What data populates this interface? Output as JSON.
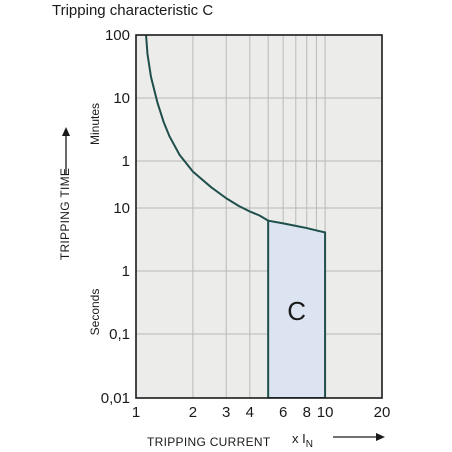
{
  "title": "Tripping characteristic C",
  "chart_data": {
    "type": "line",
    "title": "Tripping characteristic C",
    "xlabel": "TRIPPING CURRENT",
    "xunit_prefix": "x I",
    "xunit_sub": "N",
    "ylabel": "TRIPPING TIME",
    "x_scale": "log",
    "xlim": [
      1,
      20
    ],
    "x_ticks": [
      {
        "value": 1,
        "label": "1"
      },
      {
        "value": 2,
        "label": "2"
      },
      {
        "value": 3,
        "label": "3"
      },
      {
        "value": 4,
        "label": "4"
      },
      {
        "value": 6,
        "label": "6"
      },
      {
        "value": 8,
        "label": "8"
      },
      {
        "value": 10,
        "label": "10"
      },
      {
        "value": 20,
        "label": "20"
      }
    ],
    "x_grid": [
      1,
      2,
      3,
      4,
      5,
      6,
      7,
      8,
      9,
      10,
      20
    ],
    "y_unit_groups": [
      {
        "unit": "Minutes",
        "ticks": [
          {
            "label": "100",
            "seconds": 6000
          },
          {
            "label": "10",
            "seconds": 600
          },
          {
            "label": "1",
            "seconds": 60
          }
        ]
      },
      {
        "unit": "Seconds",
        "ticks": [
          {
            "label": "10",
            "seconds": 10
          },
          {
            "label": "1",
            "seconds": 1
          },
          {
            "label": "0,1",
            "seconds": 0.1
          },
          {
            "label": "0,01",
            "seconds": 0.01
          }
        ]
      }
    ],
    "thermal_curve": {
      "x": [
        1.13,
        1.15,
        1.2,
        1.3,
        1.4,
        1.5,
        1.7,
        2.0,
        2.5,
        3.0,
        3.5,
        4.0,
        4.5,
        5.0
      ],
      "y_seconds": [
        6000,
        3000,
        1300,
        500,
        250,
        150,
        75,
        40,
        22,
        14.5,
        10.8,
        8.8,
        7.6,
        6.3
      ]
    },
    "upper_limit": {
      "x": [
        5.0,
        6.0,
        7.0,
        8.0,
        9.0,
        10.0
      ],
      "y_seconds": [
        6.3,
        5.7,
        5.2,
        4.8,
        4.4,
        4.1
      ]
    },
    "magnetic_region": {
      "label": "C",
      "x_min": 5,
      "x_max": 10,
      "y_bottom_seconds": 0.01
    },
    "grid": true,
    "legend": "none"
  }
}
